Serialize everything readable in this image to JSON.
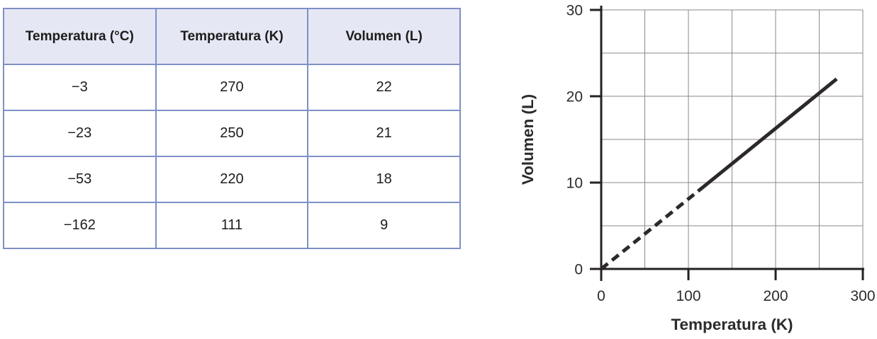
{
  "table": {
    "headers": [
      "Temperatura (°C)",
      "Temperatura (K)",
      "Volumen (L)"
    ],
    "rows": [
      [
        "−3",
        "270",
        "22"
      ],
      [
        "−23",
        "250",
        "21"
      ],
      [
        "−53",
        "220",
        "18"
      ],
      [
        "−162",
        "111",
        "9"
      ]
    ],
    "header_bg": "#e6e7f4",
    "border_color": "#7e90c6"
  },
  "chart_data": {
    "type": "line",
    "title": "",
    "xlabel": "Temperatura (K)",
    "ylabel": "Volumen (L)",
    "xlim": [
      0,
      300
    ],
    "ylim": [
      0,
      30
    ],
    "xticks": [
      0,
      100,
      200,
      300
    ],
    "yticks": [
      0,
      10,
      20,
      30
    ],
    "grid": true,
    "grid_step_x": 50,
    "grid_step_y": 5,
    "legend": "none",
    "series": [
      {
        "style": "dashed",
        "x": [
          0,
          111
        ],
        "y": [
          0,
          9
        ]
      },
      {
        "style": "solid",
        "x": [
          111,
          270
        ],
        "y": [
          9,
          22
        ]
      }
    ],
    "colors": {
      "line": "#2d292a",
      "grid": "#8a8a8a",
      "axis": "#232121"
    }
  }
}
